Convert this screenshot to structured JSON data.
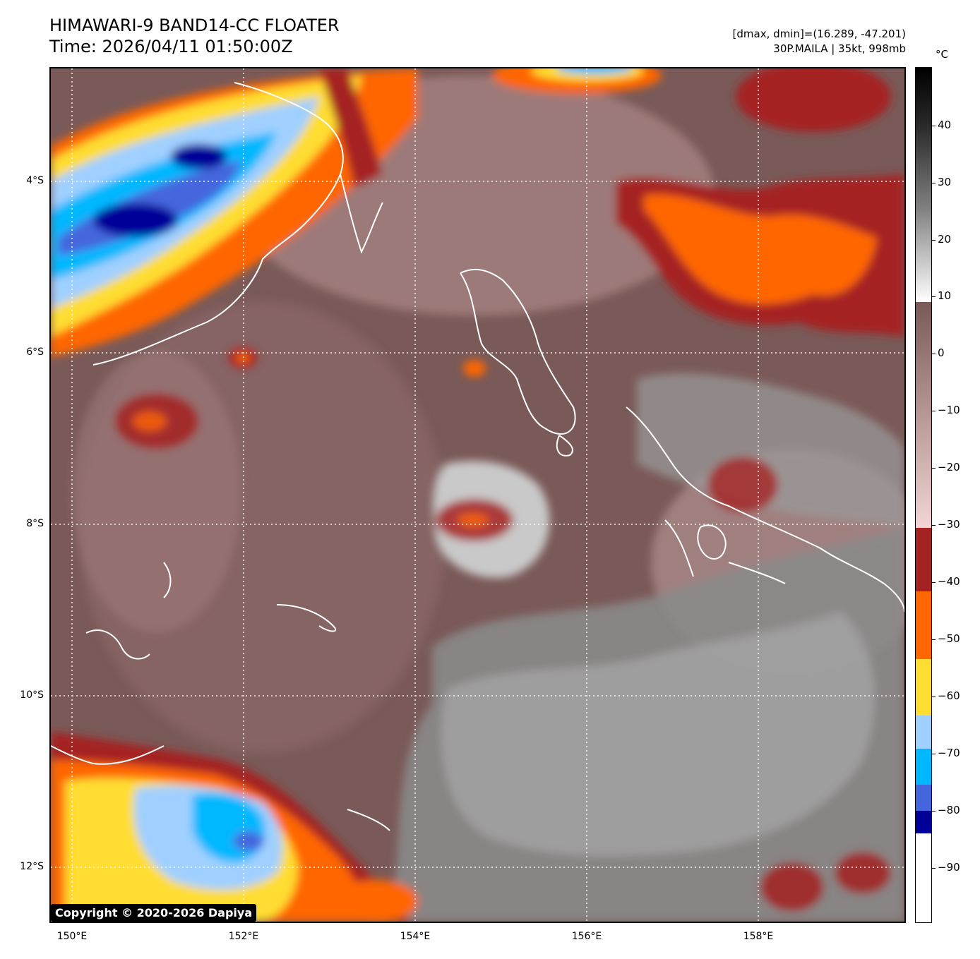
{
  "header": {
    "title_line1": "HIMAWARI-9 BAND14-CC FLOATER",
    "title_line2": "Time: 2026/04/11 01:50:00Z",
    "range_text": "[dmax, dmin]=(16.289, -47.201)",
    "storm_text": "30P.MAILA | 35kt, 998mb"
  },
  "map": {
    "lat_labels": [
      "4°S",
      "6°S",
      "8°S",
      "10°S",
      "12°S"
    ],
    "lon_labels": [
      "150°E",
      "152°E",
      "154°E",
      "156°E",
      "158°E"
    ],
    "copyright": "Copyright © 2020-2026 Dapiya"
  },
  "colorbar": {
    "unit": "°C",
    "ticks": [
      "40",
      "30",
      "20",
      "10",
      "0",
      "−10",
      "−20",
      "−30",
      "−40",
      "−50",
      "−60",
      "−70",
      "−80",
      "−90"
    ],
    "colors": {
      "black": "#000000",
      "gray": "#808080",
      "white": "#ffffff",
      "brown": "#7a5a58",
      "pink": "#f3d5d5",
      "darkred": "#a52222",
      "orange": "#ff6600",
      "yellow": "#ffdd33",
      "lightblue": "#a0d0ff",
      "cyan": "#00b8ff",
      "royalblue": "#4466dd",
      "navy": "#000099"
    }
  }
}
